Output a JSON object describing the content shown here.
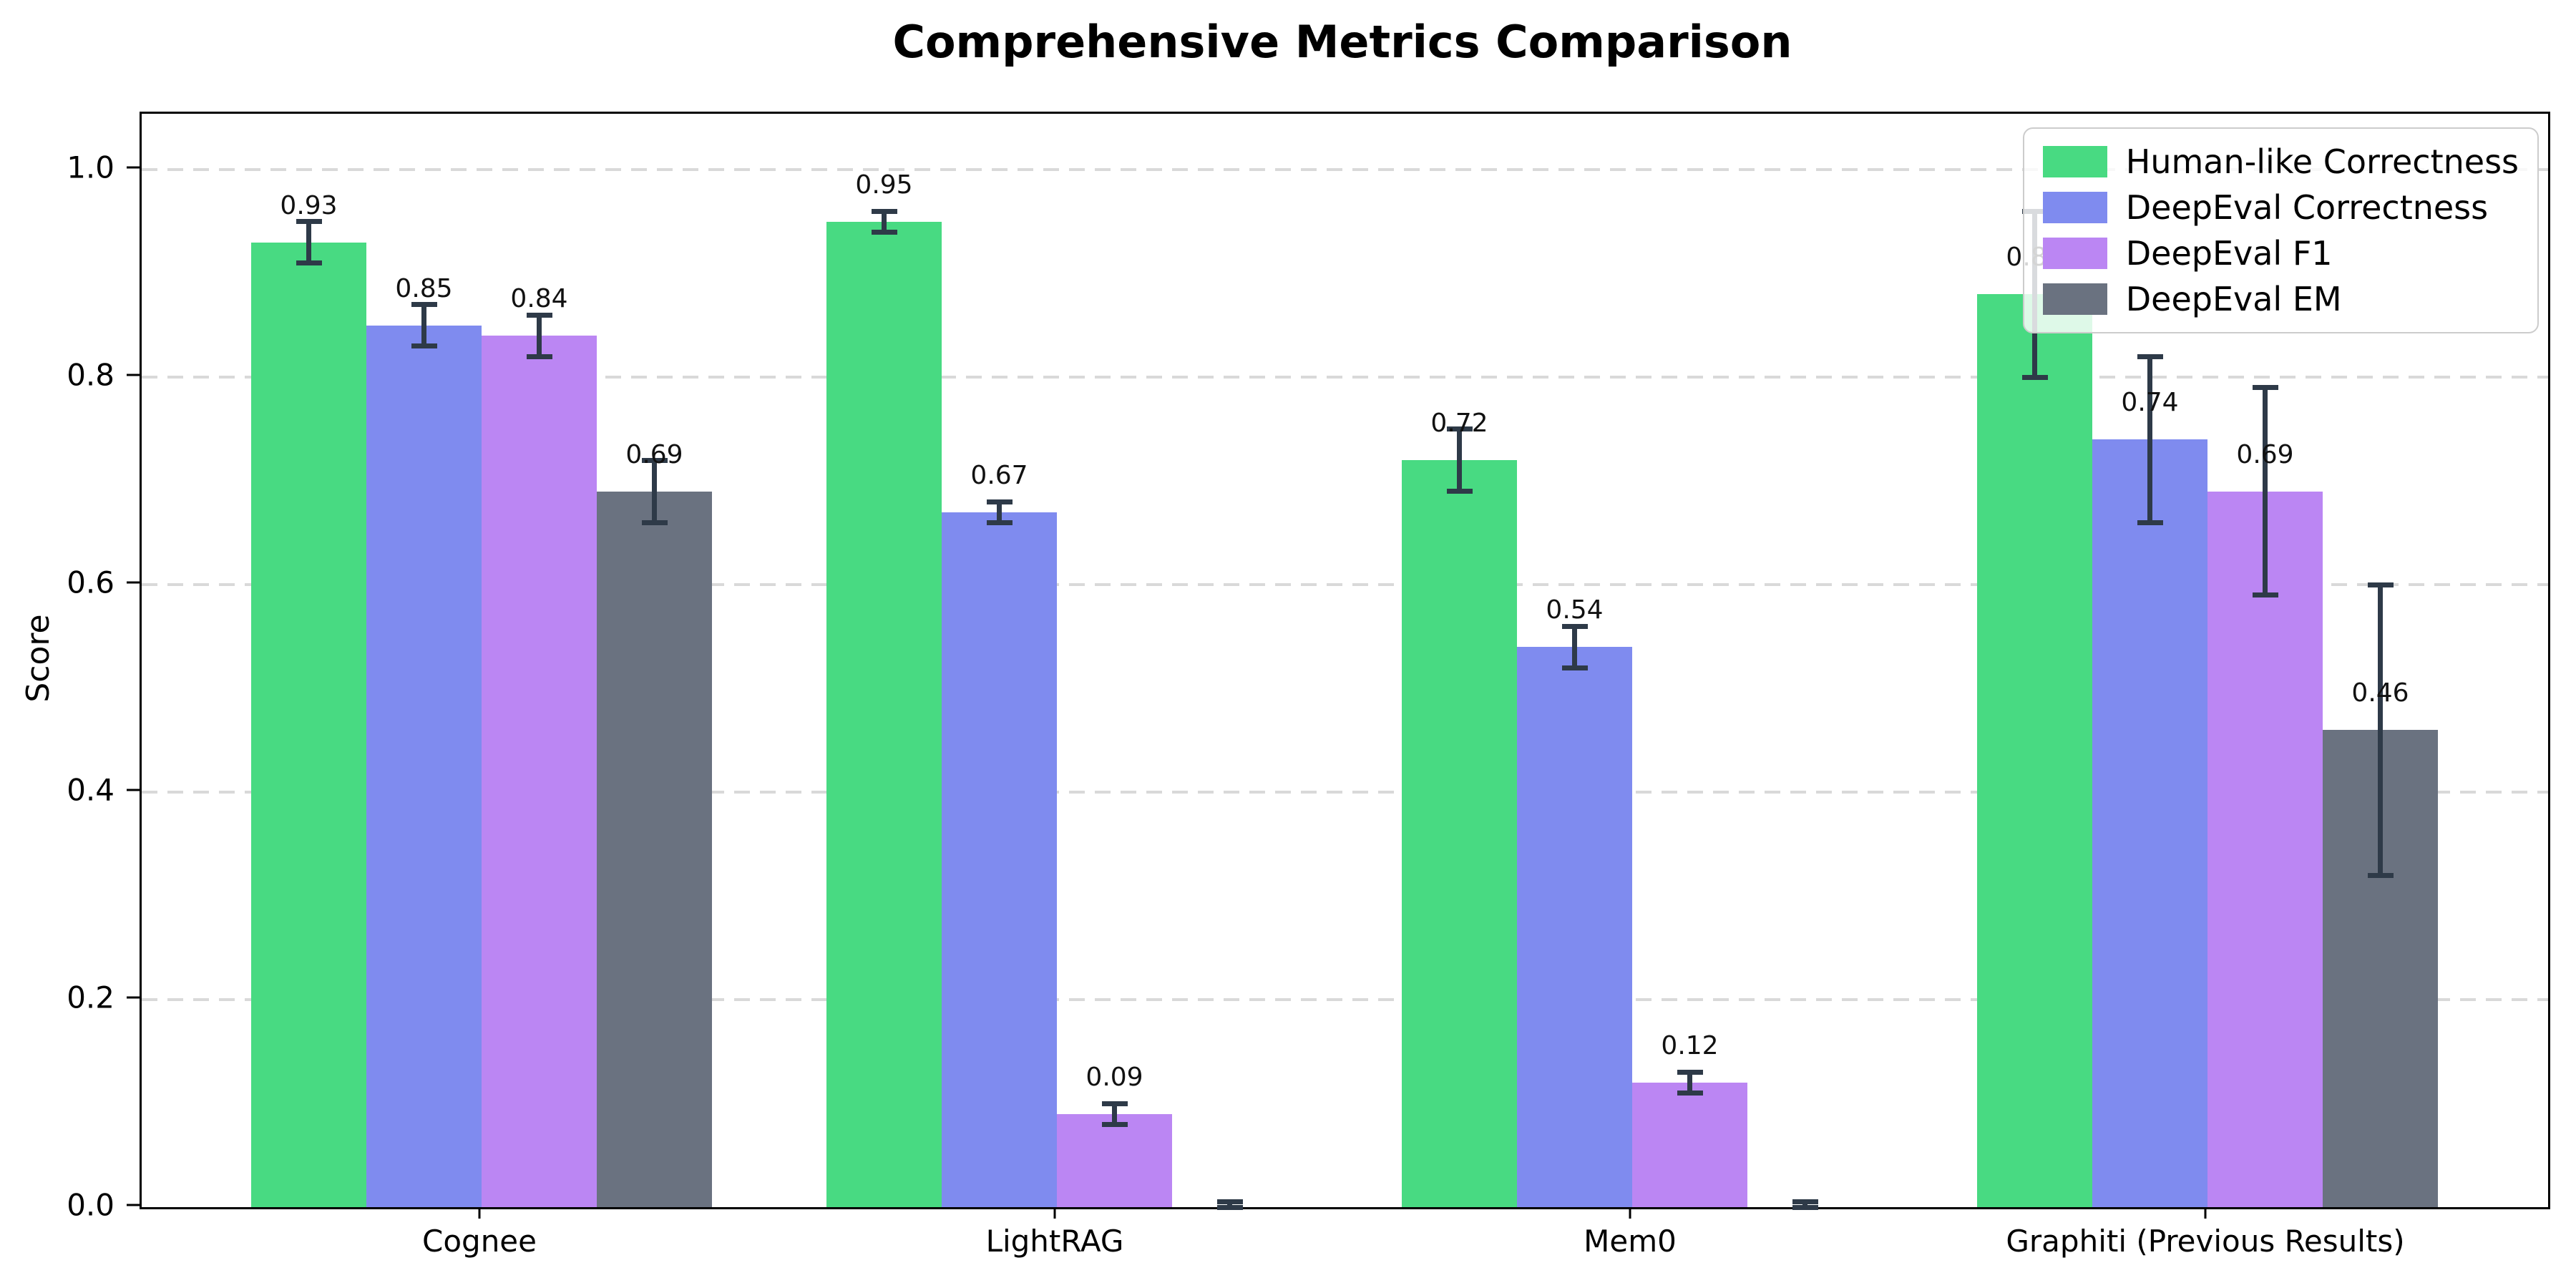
{
  "figure": {
    "title": "Comprehensive Metrics Comparison",
    "ylabel": "Score"
  },
  "chart_data": {
    "type": "bar",
    "title": "Comprehensive Metrics Comparison",
    "xlabel": "",
    "ylabel": "Score",
    "categories": [
      "Cognee",
      "LightRAG",
      "Mem0",
      "Graphiti (Previous Results)"
    ],
    "series": [
      {
        "name": "Human-like Correctness",
        "color": "#48da82",
        "values": [
          0.93,
          0.95,
          0.72,
          0.88
        ],
        "errors": [
          0.02,
          0.01,
          0.03,
          0.08
        ],
        "labels": [
          "0.93",
          "0.95",
          "0.72",
          "0.88"
        ]
      },
      {
        "name": "DeepEval Correctness",
        "color": "#7f8bef",
        "values": [
          0.85,
          0.67,
          0.54,
          0.74
        ],
        "errors": [
          0.02,
          0.01,
          0.02,
          0.08
        ],
        "labels": [
          "0.85",
          "0.67",
          "0.54",
          "0.74"
        ]
      },
      {
        "name": "DeepEval F1",
        "color": "#bb86f3",
        "values": [
          0.84,
          0.09,
          0.12,
          0.69
        ],
        "errors": [
          0.02,
          0.01,
          0.01,
          0.1
        ],
        "labels": [
          "0.84",
          "0.09",
          "0.12",
          "0.69"
        ]
      },
      {
        "name": "DeepEval EM",
        "color": "#6a7280",
        "values": [
          0.69,
          0.0,
          0.0,
          0.46
        ],
        "errors": [
          0.03,
          0.005,
          0.005,
          0.14
        ],
        "labels": [
          "0.69",
          "",
          "",
          "0.46"
        ]
      }
    ],
    "yticks": [
      {
        "value": 0.0,
        "label": "0.0"
      },
      {
        "value": 0.2,
        "label": "0.2"
      },
      {
        "value": 0.4,
        "label": "0.4"
      },
      {
        "value": 0.6,
        "label": "0.6"
      },
      {
        "value": 0.8,
        "label": "0.8"
      },
      {
        "value": 1.0,
        "label": "1.0"
      }
    ],
    "ylim": [
      0,
      1.054
    ],
    "grid": "horizontal dashed",
    "gridline_color": "#d9d9d9",
    "legend_position": "upper right",
    "error_bar_color": "#2e3a48",
    "bar_label_color": "#111111"
  }
}
